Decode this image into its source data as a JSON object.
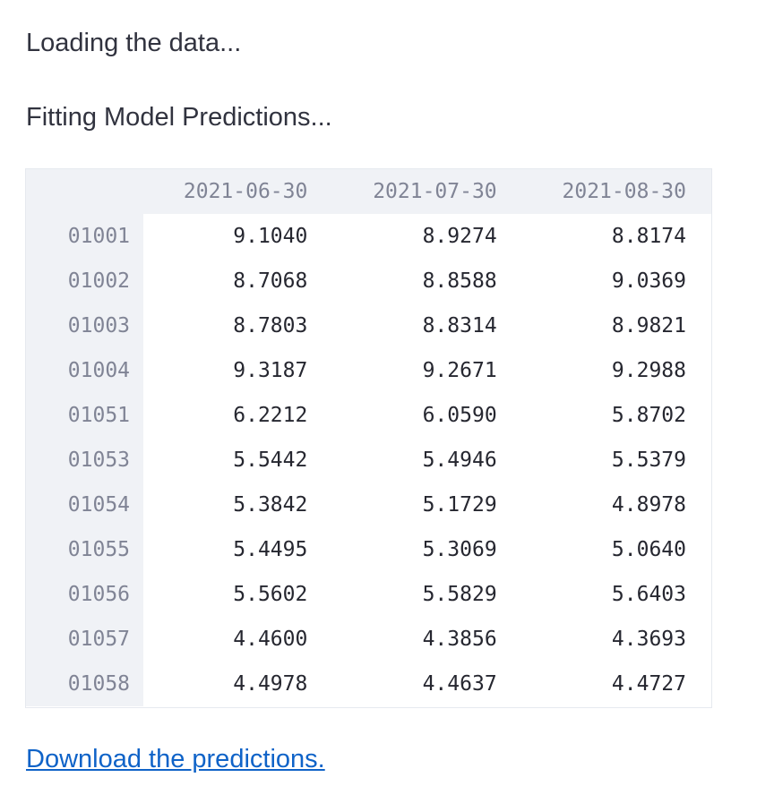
{
  "status": {
    "loading": "Loading the data...",
    "fitting": "Fitting Model Predictions..."
  },
  "table": {
    "columns": [
      "2021-06-30",
      "2021-07-30",
      "2021-08-30"
    ],
    "rows": [
      {
        "index": "01001",
        "values": [
          "9.1040",
          "8.9274",
          "8.8174"
        ]
      },
      {
        "index": "01002",
        "values": [
          "8.7068",
          "8.8588",
          "9.0369"
        ]
      },
      {
        "index": "01003",
        "values": [
          "8.7803",
          "8.8314",
          "8.9821"
        ]
      },
      {
        "index": "01004",
        "values": [
          "9.3187",
          "9.2671",
          "9.2988"
        ]
      },
      {
        "index": "01051",
        "values": [
          "6.2212",
          "6.0590",
          "5.8702"
        ]
      },
      {
        "index": "01053",
        "values": [
          "5.5442",
          "5.4946",
          "5.5379"
        ]
      },
      {
        "index": "01054",
        "values": [
          "5.3842",
          "5.1729",
          "4.8978"
        ]
      },
      {
        "index": "01055",
        "values": [
          "5.4495",
          "5.3069",
          "5.0640"
        ]
      },
      {
        "index": "01056",
        "values": [
          "5.5602",
          "5.5829",
          "5.6403"
        ]
      },
      {
        "index": "01057",
        "values": [
          "4.4600",
          "4.3856",
          "4.3693"
        ]
      },
      {
        "index": "01058",
        "values": [
          "4.4978",
          "4.4637",
          "4.4727"
        ]
      }
    ]
  },
  "download_link": {
    "label": "Download the predictions."
  }
}
